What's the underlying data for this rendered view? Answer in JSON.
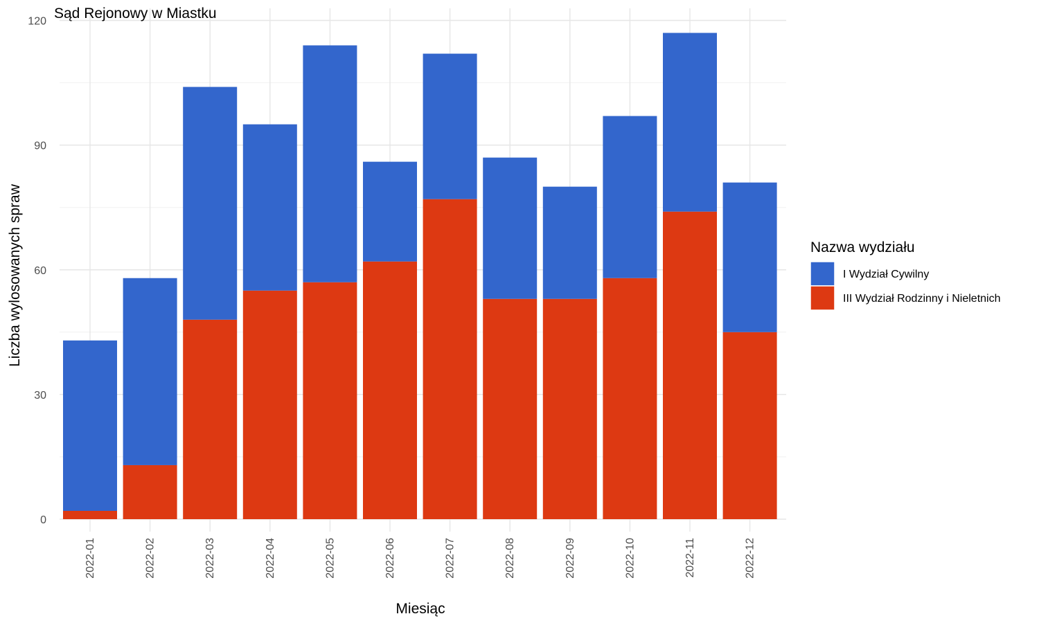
{
  "chart_data": {
    "type": "bar",
    "stacked": true,
    "title": "Sąd Rejonowy w Miastku",
    "xlabel": "Miesiąc",
    "ylabel": "Liczba wylosowanych spraw",
    "ylim": [
      0,
      120
    ],
    "yticks": [
      0,
      30,
      60,
      90,
      120
    ],
    "grid": true,
    "legend_position": "right",
    "legend_title": "Nazwa wydziału",
    "categories": [
      "2022-01",
      "2022-02",
      "2022-03",
      "2022-04",
      "2022-05",
      "2022-06",
      "2022-07",
      "2022-08",
      "2022-09",
      "2022-10",
      "2022-11",
      "2022-12"
    ],
    "series": [
      {
        "name": "III Wydział Rodzinny i Nieletnich",
        "color": "#dd3912",
        "values": [
          2,
          13,
          48,
          55,
          57,
          62,
          77,
          53,
          53,
          58,
          74,
          45
        ]
      },
      {
        "name": "I Wydział Cywilny",
        "color": "#3366cc",
        "values": [
          41,
          45,
          56,
          40,
          57,
          24,
          35,
          34,
          27,
          39,
          43,
          36
        ]
      }
    ],
    "legend_order": [
      "I Wydział Cywilny",
      "III Wydział Rodzinny i Nieletnich"
    ]
  }
}
